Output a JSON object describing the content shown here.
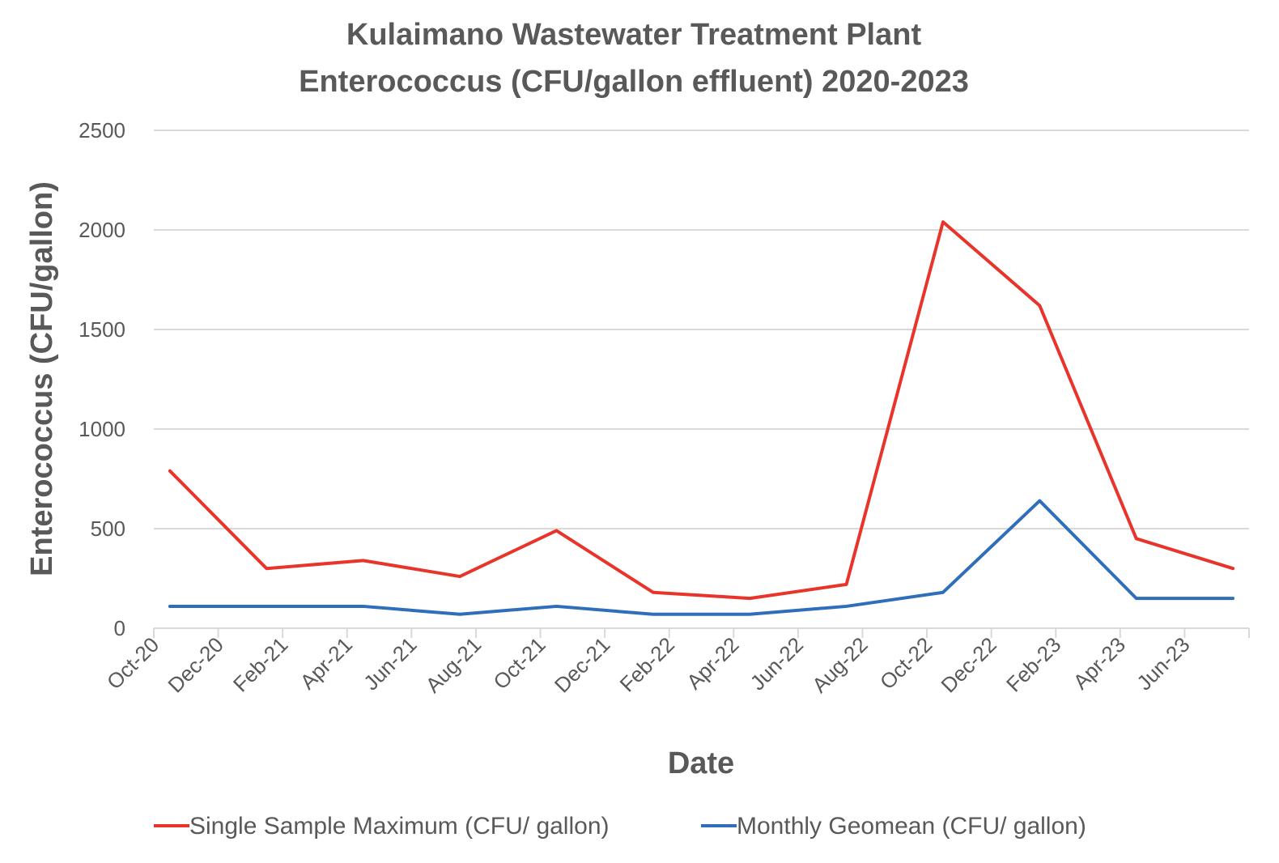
{
  "chart_data": {
    "type": "line",
    "title": [
      "Kulaimano Wastewater Treatment Plant",
      "Enterococcus (CFU/gallon effluent) 2020-2023"
    ],
    "xlabel": "Date",
    "ylabel": "Enterococcus (CFU/gallon)",
    "ylim": [
      0,
      2500
    ],
    "yticks": [
      0,
      500,
      1000,
      1500,
      2000,
      2500
    ],
    "xtick_labels": [
      "Oct-20",
      "Dec-20",
      "Feb-21",
      "Apr-21",
      "Jun-21",
      "Aug-21",
      "Oct-21",
      "Dec-21",
      "Feb-22",
      "Apr-22",
      "Jun-22",
      "Aug-22",
      "Oct-22",
      "Dec-22",
      "Feb-23",
      "Apr-23",
      "Jun-23"
    ],
    "x_months_from_oct20": [
      0.5,
      3.5,
      6.5,
      9.5,
      12.5,
      15.5,
      18.5,
      21.5,
      24.5,
      27.5,
      30.5,
      33.5
    ],
    "x_range_months": [
      0,
      34
    ],
    "x": [
      "Oct-20",
      "Jan-21",
      "Apr-21",
      "Jul-21",
      "Oct-21",
      "Jan-22",
      "Apr-22",
      "Jul-22",
      "Oct-22",
      "Jan-23",
      "Apr-23",
      "Jul-23"
    ],
    "grid": true,
    "legend_position": "bottom",
    "series": [
      {
        "name": "Single Sample Maximum (CFU/ gallon)",
        "color": "#E8342A",
        "values": [
          790,
          300,
          340,
          260,
          490,
          180,
          150,
          220,
          2040,
          1620,
          450,
          300
        ]
      },
      {
        "name": "Monthly Geomean (CFU/ gallon)",
        "color": "#2F6EBA",
        "values": [
          110,
          110,
          110,
          70,
          110,
          70,
          70,
          110,
          180,
          640,
          150,
          150
        ]
      }
    ]
  }
}
